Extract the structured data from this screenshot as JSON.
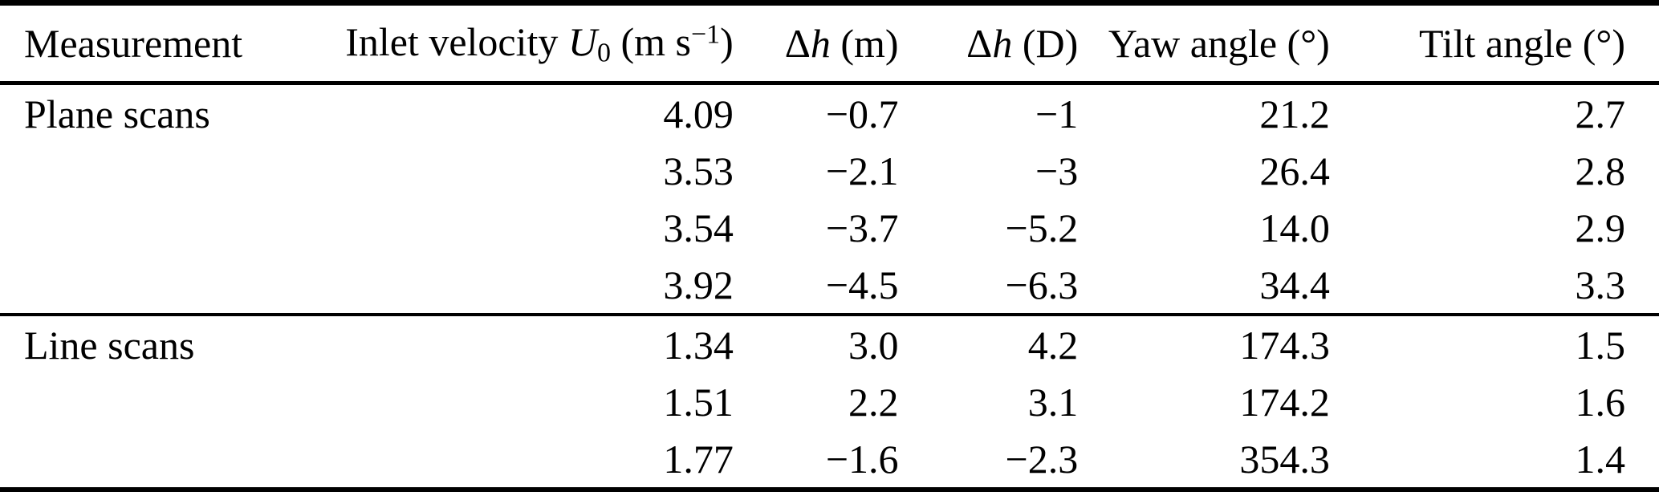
{
  "page": {
    "background_color": "#ffffff",
    "text_color": "#000000",
    "rule_color": "#000000"
  },
  "table": {
    "columns": [
      {
        "id": "measurement",
        "align": "left",
        "label": "Measurement",
        "label_segments": [
          {
            "t": "Measurement"
          }
        ]
      },
      {
        "id": "inlet_velocity",
        "align": "right",
        "label": "Inlet velocity U0 (m s−1)",
        "label_segments": [
          {
            "t": "Inlet velocity "
          },
          {
            "t": "U",
            "style": "italic"
          },
          {
            "t": "0",
            "style": "sub"
          },
          {
            "t": " (m s"
          },
          {
            "t": "−1",
            "style": "sup"
          },
          {
            "t": ")"
          }
        ]
      },
      {
        "id": "delta_h_m",
        "align": "right",
        "label": "Δh (m)",
        "label_segments": [
          {
            "t": "Δ"
          },
          {
            "t": "h",
            "style": "italic"
          },
          {
            "t": " (m)"
          }
        ]
      },
      {
        "id": "delta_h_d",
        "align": "right",
        "label": "Δh (D)",
        "label_segments": [
          {
            "t": "Δ"
          },
          {
            "t": "h",
            "style": "italic"
          },
          {
            "t": " (D)"
          }
        ]
      },
      {
        "id": "yaw_angle",
        "align": "right",
        "label": "Yaw angle (°)",
        "label_segments": [
          {
            "t": "Yaw angle (°)"
          }
        ]
      },
      {
        "id": "tilt_angle",
        "align": "right",
        "label": "Tilt angle (°)",
        "label_segments": [
          {
            "t": "Tilt angle (°)"
          }
        ]
      }
    ],
    "groups": [
      {
        "label": "Plane scans",
        "rows": [
          [
            "4.09",
            "−0.7",
            "−1",
            "21.2",
            "2.7"
          ],
          [
            "3.53",
            "−2.1",
            "−3",
            "26.4",
            "2.8"
          ],
          [
            "3.54",
            "−3.7",
            "−5.2",
            "14.0",
            "2.9"
          ],
          [
            "3.92",
            "−4.5",
            "−6.3",
            "34.4",
            "3.3"
          ]
        ]
      },
      {
        "label": "Line scans",
        "rows": [
          [
            "1.34",
            "3.0",
            "4.2",
            "174.3",
            "1.5"
          ],
          [
            "1.51",
            "2.2",
            "3.1",
            "174.2",
            "1.6"
          ],
          [
            "1.77",
            "−1.6",
            "−2.3",
            "354.3",
            "1.4"
          ]
        ]
      }
    ]
  },
  "chart_data": {
    "type": "table",
    "title": "",
    "columns": [
      "Measurement",
      "Inlet velocity U0 (m s−1)",
      "Δh (m)",
      "Δh (D)",
      "Yaw angle (°)",
      "Tilt angle (°)"
    ],
    "rows": [
      [
        "Plane scans",
        4.09,
        -0.7,
        -1,
        21.2,
        2.7
      ],
      [
        "",
        3.53,
        -2.1,
        -3,
        26.4,
        2.8
      ],
      [
        "",
        3.54,
        -3.7,
        -5.2,
        14.0,
        2.9
      ],
      [
        "",
        3.92,
        -4.5,
        -6.3,
        34.4,
        3.3
      ],
      [
        "Line scans",
        1.34,
        3.0,
        4.2,
        174.3,
        1.5
      ],
      [
        "",
        1.51,
        2.2,
        3.1,
        174.2,
        1.6
      ],
      [
        "",
        1.77,
        -1.6,
        -2.3,
        354.3,
        1.4
      ]
    ]
  }
}
